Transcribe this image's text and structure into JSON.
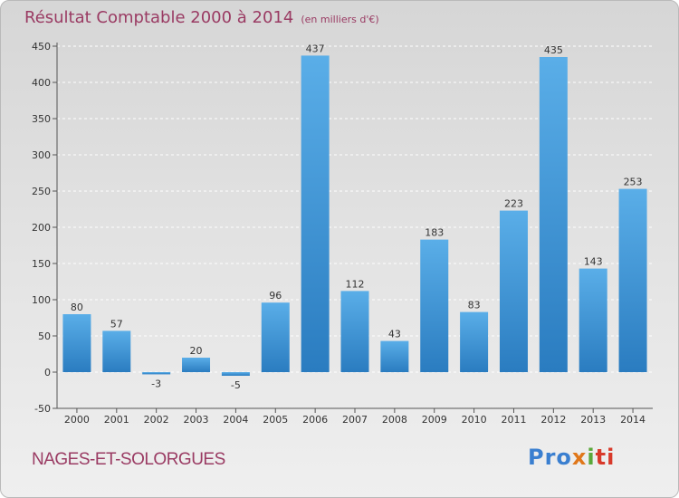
{
  "header": {
    "title": "Résultat Comptable 2000 à 2014",
    "subtitle": "(en milliers d'€)"
  },
  "footer": {
    "place": "NAGES-ET-SOLORGUES",
    "logo_text": "Proxiti"
  },
  "colors": {
    "bar_top": "#5aaee8",
    "bar_bottom": "#2a7cc0",
    "title": "#9a3b63"
  },
  "chart_data": {
    "type": "bar",
    "title": "Résultat Comptable 2000 à 2014",
    "subtitle": "(en milliers d'€)",
    "categories": [
      "2000",
      "2001",
      "2002",
      "2003",
      "2004",
      "2005",
      "2006",
      "2007",
      "2008",
      "2009",
      "2010",
      "2011",
      "2012",
      "2013",
      "2014"
    ],
    "values": [
      80,
      57,
      -3,
      20,
      -5,
      96,
      437,
      112,
      43,
      183,
      83,
      223,
      435,
      143,
      253
    ],
    "ylim": [
      -50,
      450
    ],
    "yticks": [
      -50,
      0,
      50,
      100,
      150,
      200,
      250,
      300,
      350,
      400,
      450
    ],
    "grid": true,
    "legend": "none"
  }
}
